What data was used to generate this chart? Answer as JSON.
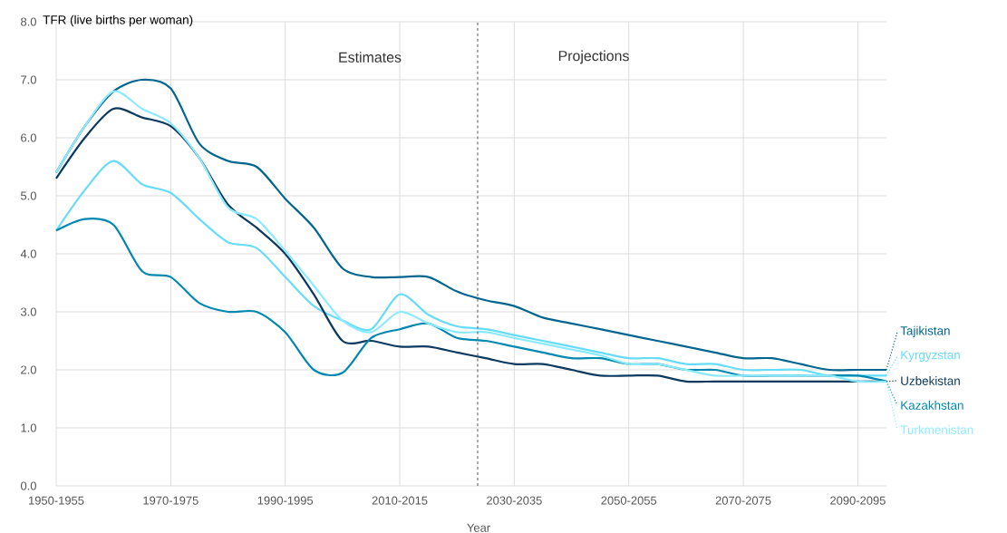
{
  "chart_data": {
    "type": "line",
    "xlabel": "Year",
    "ylabel": "TFR (live births per woman)",
    "categories": [
      "1950-1955",
      null,
      null,
      null,
      "1970-1975",
      null,
      null,
      null,
      "1990-1995",
      null,
      null,
      null,
      "2010-2015",
      null,
      null,
      null,
      "2030-2035",
      null,
      null,
      null,
      "2050-2055",
      null,
      null,
      null,
      "2070-2075",
      null,
      null,
      null,
      "2090-2095",
      null
    ],
    "ylim": [
      0,
      8
    ],
    "yticks": [
      {
        "value": 0,
        "label": "0.0"
      },
      {
        "value": 1,
        "label": "1.0"
      },
      {
        "value": 2,
        "label": "2.0"
      },
      {
        "value": 3,
        "label": "3.0"
      },
      {
        "value": 4,
        "label": "4.0"
      },
      {
        "value": 5,
        "label": "5.0"
      },
      {
        "value": 6,
        "label": "6.0"
      },
      {
        "value": 7,
        "label": "7.0"
      },
      {
        "value": 8,
        "label": "8.0"
      }
    ],
    "grid": true,
    "line_style": "solid",
    "annotations": [
      "Estimates",
      "Projections"
    ],
    "series": [
      {
        "name": "Tajikistan",
        "color": "#00668e",
        "values": [
          5.4,
          6.2,
          6.8,
          7.0,
          6.85,
          5.9,
          5.6,
          5.5,
          4.95,
          4.45,
          3.75,
          3.6,
          3.6,
          3.6,
          3.35,
          3.2,
          3.1,
          2.9,
          2.8,
          2.7,
          2.6,
          2.5,
          2.4,
          2.3,
          2.2,
          2.2,
          2.1,
          2.0,
          2.0,
          2.0
        ]
      },
      {
        "name": "Kyrgyzstan",
        "color": "#66dcf8",
        "values": [
          4.4,
          5.1,
          5.6,
          5.2,
          5.05,
          4.6,
          4.2,
          4.1,
          3.6,
          3.1,
          2.85,
          2.7,
          3.3,
          2.95,
          2.75,
          2.7,
          2.6,
          2.5,
          2.4,
          2.3,
          2.2,
          2.2,
          2.1,
          2.1,
          2.0,
          2.0,
          2.0,
          1.9,
          1.9,
          1.9
        ]
      },
      {
        "name": "Uzbekistan",
        "color": "#0b3a5e",
        "values": [
          5.3,
          6.0,
          6.5,
          6.35,
          6.2,
          5.65,
          4.85,
          4.45,
          4.0,
          3.3,
          2.5,
          2.5,
          2.4,
          2.4,
          2.3,
          2.2,
          2.1,
          2.1,
          2.0,
          1.9,
          1.9,
          1.9,
          1.8,
          1.8,
          1.8,
          1.8,
          1.8,
          1.8,
          1.8,
          1.8
        ]
      },
      {
        "name": "Kazakhstan",
        "color": "#0088b0",
        "values": [
          4.4,
          4.6,
          4.5,
          3.7,
          3.6,
          3.15,
          3.0,
          3.0,
          2.65,
          2.0,
          1.95,
          2.55,
          2.7,
          2.8,
          2.55,
          2.5,
          2.4,
          2.3,
          2.2,
          2.2,
          2.1,
          2.1,
          2.0,
          2.0,
          1.9,
          1.9,
          1.9,
          1.9,
          1.9,
          1.8
        ]
      },
      {
        "name": "Turkmenistan",
        "color": "#8ceaff",
        "values": [
          5.4,
          6.2,
          6.8,
          6.5,
          6.25,
          5.65,
          4.8,
          4.6,
          4.05,
          3.45,
          2.85,
          2.65,
          3.0,
          2.8,
          2.65,
          2.65,
          2.55,
          2.45,
          2.35,
          2.25,
          2.1,
          2.1,
          2.0,
          1.9,
          1.9,
          1.9,
          1.9,
          1.9,
          1.8,
          1.8
        ]
      }
    ]
  }
}
